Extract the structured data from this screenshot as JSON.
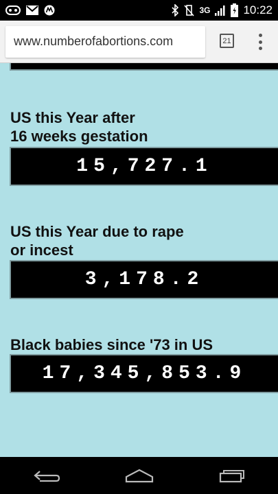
{
  "status_bar": {
    "network": "3G",
    "time": "10:22"
  },
  "browser": {
    "url": "www.numberofabortions.com",
    "tab_count": "21"
  },
  "counters": [
    {
      "label_line1": "US this Year after",
      "label_line2": "16 weeks gestation",
      "value": "15,727.1"
    },
    {
      "label_line1": "US this Year due to rape",
      "label_line2": "or incest",
      "value": "3,178.2"
    },
    {
      "label_line1": "Black babies since '73 in US",
      "label_line2": "",
      "value": "17,345,853.9"
    }
  ],
  "icons": {
    "status_left": [
      "mail-outline-icon",
      "gmail-icon",
      "motorola-icon"
    ],
    "status_right": [
      "bluetooth-icon",
      "vibrate-icon",
      "signal-icon",
      "battery-icon"
    ],
    "nav": [
      "back-icon",
      "home-icon",
      "recent-apps-icon"
    ]
  },
  "colors": {
    "page_background": "#b0e0e6",
    "counter_background": "#000000",
    "counter_text": "#ffffff"
  }
}
